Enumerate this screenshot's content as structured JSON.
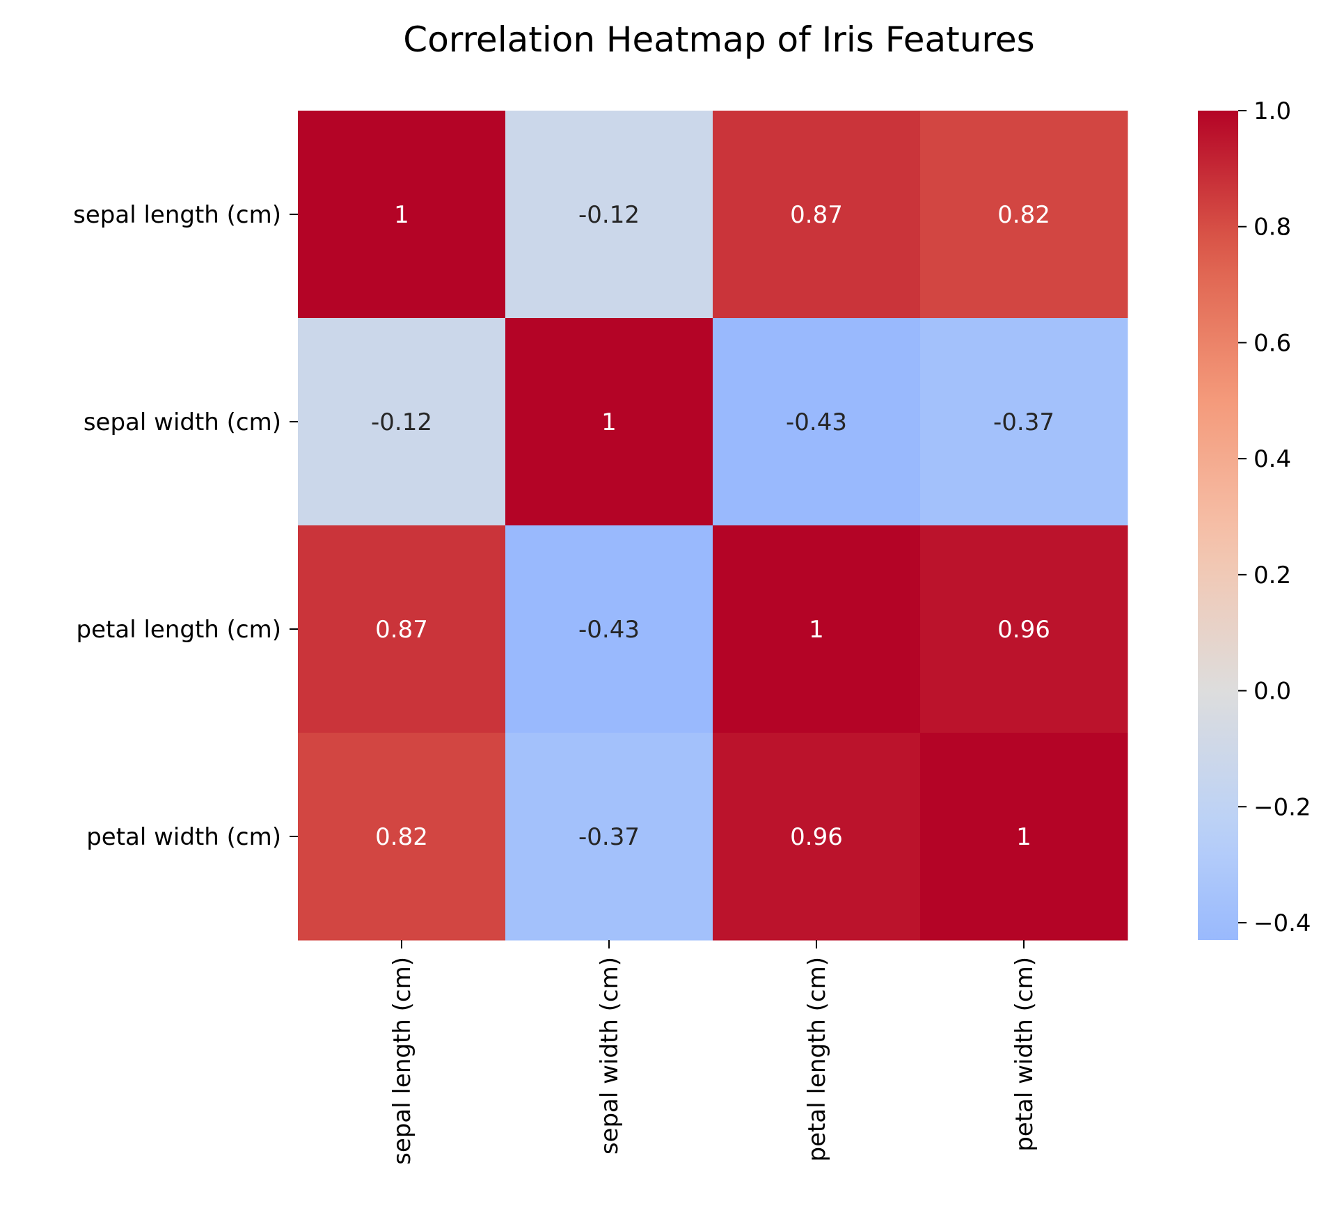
{
  "chart_data": {
    "type": "heatmap",
    "title": "Correlation Heatmap of Iris Features",
    "xlabel": "",
    "ylabel": "",
    "x_categories": [
      "sepal length (cm)",
      "sepal width (cm)",
      "petal length (cm)",
      "petal width (cm)"
    ],
    "y_categories": [
      "sepal length (cm)",
      "sepal width (cm)",
      "petal length (cm)",
      "petal width (cm)"
    ],
    "values": [
      [
        1,
        -0.12,
        0.87,
        0.82
      ],
      [
        -0.12,
        1,
        -0.43,
        -0.37
      ],
      [
        0.87,
        -0.43,
        1,
        0.96
      ],
      [
        0.82,
        -0.37,
        0.96,
        1
      ]
    ],
    "cell_labels": [
      [
        "1",
        "-0.12",
        "0.87",
        "0.82"
      ],
      [
        "-0.12",
        "1",
        "-0.43",
        "-0.37"
      ],
      [
        "0.87",
        "-0.43",
        "1",
        "0.96"
      ],
      [
        "0.82",
        "-0.37",
        "0.96",
        "1"
      ]
    ],
    "colormap": "coolwarm",
    "color_range": [
      -0.43,
      1.0
    ],
    "colorbar_ticks": [
      1.0,
      0.8,
      0.6,
      0.4,
      0.2,
      0.0,
      -0.2,
      -0.4
    ],
    "colorbar_tick_labels": [
      "1.0",
      "0.8",
      "0.6",
      "0.4",
      "0.2",
      "0.0",
      "−0.2",
      "−0.4"
    ],
    "colorbar_placement": "right",
    "grid": false
  }
}
